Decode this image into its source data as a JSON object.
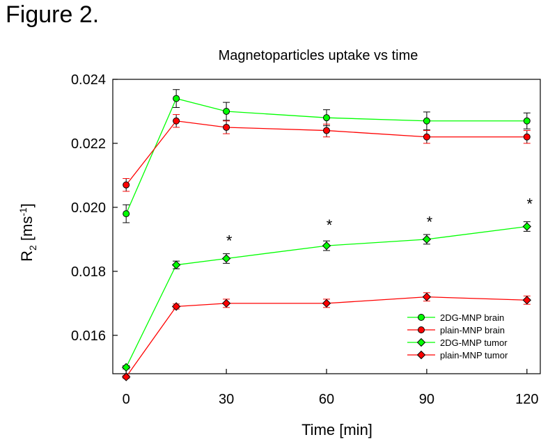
{
  "figure_label": "Figure 2.",
  "chart_data": {
    "type": "line",
    "title": "Magnetoparticles uptake vs time",
    "xlabel": "Time [min]",
    "ylabel_base": "R",
    "ylabel_sub": "2",
    "ylabel_unit_pre": " [ms",
    "ylabel_unit_sup": "-1",
    "ylabel_unit_post": "]",
    "xlim": [
      -4,
      124
    ],
    "ylim": [
      0.0148,
      0.024
    ],
    "x_ticks": [
      {
        "value": 0,
        "label": "0"
      },
      {
        "value": 30,
        "label": "30"
      },
      {
        "value": 60,
        "label": "60"
      },
      {
        "value": 90,
        "label": "90"
      },
      {
        "value": 120,
        "label": "120"
      }
    ],
    "y_ticks": [
      {
        "value": 0.016,
        "label": "0.016"
      },
      {
        "value": 0.018,
        "label": "0.018"
      },
      {
        "value": 0.02,
        "label": "0.020"
      },
      {
        "value": 0.022,
        "label": "0.022"
      },
      {
        "value": 0.024,
        "label": "0.024"
      }
    ],
    "x": [
      0,
      15,
      30,
      60,
      90,
      120
    ],
    "series": [
      {
        "name": "2DG-MNP brain",
        "color": "#00ff00",
        "marker": "circle",
        "values": [
          0.0198,
          0.0234,
          0.023,
          0.0228,
          0.0227,
          0.0227
        ],
        "errors": [
          0.00028,
          0.00028,
          0.00028,
          0.00025,
          0.00028,
          0.00025
        ]
      },
      {
        "name": "plain-MNP brain",
        "color": "#ff0000",
        "marker": "circle",
        "values": [
          0.0207,
          0.0227,
          0.0225,
          0.0224,
          0.0222,
          0.0222
        ],
        "errors": [
          0.0002,
          0.0002,
          0.0002,
          0.0002,
          0.0002,
          0.0002
        ]
      },
      {
        "name": "2DG-MNP tumor",
        "color": "#00ff00",
        "marker": "diamond",
        "values": [
          0.015,
          0.0182,
          0.0184,
          0.0188,
          0.019,
          0.0194
        ],
        "errors": [
          5e-05,
          0.00012,
          0.00015,
          0.00015,
          0.00015,
          0.00015
        ]
      },
      {
        "name": "plain-MNP tumor",
        "color": "#ff0000",
        "marker": "diamond",
        "values": [
          0.0147,
          0.0169,
          0.017,
          0.017,
          0.0172,
          0.0171
        ],
        "errors": [
          5e-05,
          8e-05,
          0.00013,
          0.00013,
          0.00013,
          0.00013
        ]
      }
    ],
    "annotations": [
      {
        "text": "*",
        "x": 30,
        "y": 0.0191
      },
      {
        "text": "*",
        "x": 60,
        "y": 0.01958
      },
      {
        "text": "*",
        "x": 90,
        "y": 0.01968
      },
      {
        "text": "*",
        "x": 120,
        "y": 0.02025
      }
    ],
    "legend_position": "bottom-right"
  }
}
